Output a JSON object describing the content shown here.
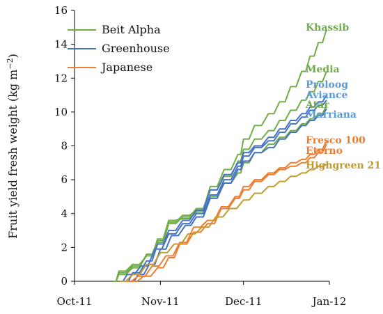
{
  "chart_data": {
    "type": "line",
    "xlabel": "",
    "ylabel": "Fruit yield fresh weight (kg m",
    "ylabel_superscript": "−2",
    "ylabel_suffix": ")",
    "ylim": [
      0,
      16
    ],
    "y_ticks": [
      0,
      2,
      4,
      6,
      8,
      10,
      12,
      14,
      16
    ],
    "xlim": [
      "2011-10-01",
      "2012-01-01"
    ],
    "x_ticks": [
      {
        "date": "2011-10-01",
        "label": "Oct-11"
      },
      {
        "date": "2011-11-01",
        "label": "Nov-11"
      },
      {
        "date": "2011-12-01",
        "label": "Dec-11"
      },
      {
        "date": "2012-01-01",
        "label": "Jan-12"
      }
    ],
    "grid": false,
    "legend_position": "top-left",
    "legend": [
      {
        "name": "Beit Alpha",
        "color": "#70ad47"
      },
      {
        "name": "Greenhouse",
        "color": "#4472c4"
      },
      {
        "name": "Japanese",
        "color": "#ed7d31"
      }
    ],
    "series": [
      {
        "name": "Khassib",
        "group": "Beit Alpha",
        "color": "#70ad47",
        "label_color": "#70ad47",
        "points": [
          [
            "2011-10-15",
            0
          ],
          [
            "2011-10-17",
            0.5
          ],
          [
            "2011-10-22",
            0.9
          ],
          [
            "2011-10-27",
            1.5
          ],
          [
            "2011-10-31",
            2.4
          ],
          [
            "2011-11-04",
            3.5
          ],
          [
            "2011-11-09",
            3.9
          ],
          [
            "2011-11-14",
            4.2
          ],
          [
            "2011-11-19",
            5.6
          ],
          [
            "2011-11-24",
            6.6
          ],
          [
            "2011-11-29",
            7.5
          ],
          [
            "2011-12-01",
            8.4
          ],
          [
            "2011-12-05",
            9.2
          ],
          [
            "2011-12-10",
            9.9
          ],
          [
            "2011-12-14",
            10.6
          ],
          [
            "2011-12-18",
            11.5
          ],
          [
            "2011-12-22",
            12.4
          ],
          [
            "2011-12-25",
            13.3
          ],
          [
            "2011-12-28",
            14.1
          ],
          [
            "2011-12-31",
            14.9
          ]
        ]
      },
      {
        "name": "Media",
        "group": "Beit Alpha",
        "color": "#70ad47",
        "label_color": "#70ad47",
        "points": [
          [
            "2011-10-15",
            0
          ],
          [
            "2011-10-17",
            0.4
          ],
          [
            "2011-10-22",
            0.8
          ],
          [
            "2011-10-27",
            1.6
          ],
          [
            "2011-10-31",
            2.3
          ],
          [
            "2011-11-04",
            3.4
          ],
          [
            "2011-11-09",
            3.8
          ],
          [
            "2011-11-14",
            4.3
          ],
          [
            "2011-11-19",
            5.4
          ],
          [
            "2011-11-24",
            6.2
          ],
          [
            "2011-11-29",
            7.1
          ],
          [
            "2011-12-01",
            7.8
          ],
          [
            "2011-12-05",
            8.4
          ],
          [
            "2011-12-10",
            8.9
          ],
          [
            "2011-12-14",
            9.5
          ],
          [
            "2011-12-18",
            10.1
          ],
          [
            "2011-12-22",
            10.7
          ],
          [
            "2011-12-25",
            11.2
          ],
          [
            "2011-12-28",
            11.8
          ],
          [
            "2011-12-31",
            12.4
          ]
        ]
      },
      {
        "name": "Atar",
        "group": "Beit Alpha",
        "color": "#70ad47",
        "label_color": "#70ad47",
        "points": [
          [
            "2011-10-15",
            0
          ],
          [
            "2011-10-17",
            0.6
          ],
          [
            "2011-10-22",
            1.0
          ],
          [
            "2011-10-27",
            1.5
          ],
          [
            "2011-10-31",
            2.5
          ],
          [
            "2011-11-04",
            3.6
          ],
          [
            "2011-11-09",
            3.7
          ],
          [
            "2011-11-14",
            4.1
          ],
          [
            "2011-11-19",
            5.0
          ],
          [
            "2011-11-24",
            5.8
          ],
          [
            "2011-11-29",
            6.4
          ],
          [
            "2011-12-01",
            7.0
          ],
          [
            "2011-12-05",
            7.6
          ],
          [
            "2011-12-10",
            8.1
          ],
          [
            "2011-12-14",
            8.5
          ],
          [
            "2011-12-18",
            8.9
          ],
          [
            "2011-12-22",
            9.3
          ],
          [
            "2011-12-25",
            9.6
          ],
          [
            "2011-12-28",
            9.9
          ],
          [
            "2011-12-31",
            10.4
          ]
        ]
      },
      {
        "name": "Proloog",
        "group": "Greenhouse",
        "color": "#4472c4",
        "label_color": "#5b9bd5",
        "points": [
          [
            "2011-10-19",
            0
          ],
          [
            "2011-10-22",
            0.5
          ],
          [
            "2011-10-27",
            1.2
          ],
          [
            "2011-10-31",
            2.2
          ],
          [
            "2011-11-04",
            3.0
          ],
          [
            "2011-11-09",
            3.6
          ],
          [
            "2011-11-14",
            4.2
          ],
          [
            "2011-11-19",
            5.4
          ],
          [
            "2011-11-24",
            6.3
          ],
          [
            "2011-11-29",
            7.0
          ],
          [
            "2011-12-01",
            7.6
          ],
          [
            "2011-12-05",
            8.0
          ],
          [
            "2011-12-10",
            8.5
          ],
          [
            "2011-12-14",
            9.0
          ],
          [
            "2011-12-18",
            9.5
          ],
          [
            "2011-12-22",
            9.9
          ],
          [
            "2011-12-25",
            10.3
          ],
          [
            "2011-12-28",
            10.6
          ],
          [
            "2011-12-31",
            11.0
          ]
        ]
      },
      {
        "name": "Aviance",
        "group": "Greenhouse",
        "color": "#4472c4",
        "label_color": "#5b9bd5",
        "points": [
          [
            "2011-10-17",
            0
          ],
          [
            "2011-10-20",
            0.4
          ],
          [
            "2011-10-25",
            0.9
          ],
          [
            "2011-10-30",
            1.9
          ],
          [
            "2011-11-04",
            2.8
          ],
          [
            "2011-11-09",
            3.4
          ],
          [
            "2011-11-14",
            4.0
          ],
          [
            "2011-11-19",
            5.1
          ],
          [
            "2011-11-24",
            6.0
          ],
          [
            "2011-11-29",
            6.8
          ],
          [
            "2011-12-01",
            7.4
          ],
          [
            "2011-12-05",
            7.9
          ],
          [
            "2011-12-10",
            8.3
          ],
          [
            "2011-12-14",
            8.8
          ],
          [
            "2011-12-18",
            9.3
          ],
          [
            "2011-12-22",
            9.7
          ],
          [
            "2011-12-25",
            10.1
          ],
          [
            "2011-12-28",
            10.4
          ],
          [
            "2011-12-31",
            10.7
          ]
        ]
      },
      {
        "name": "Marriana",
        "group": "Greenhouse",
        "color": "#4472c4",
        "label_color": "#5b9bd5",
        "points": [
          [
            "2011-10-21",
            0
          ],
          [
            "2011-10-24",
            0.4
          ],
          [
            "2011-10-28",
            1.0
          ],
          [
            "2011-11-01",
            1.9
          ],
          [
            "2011-11-05",
            2.7
          ],
          [
            "2011-11-10",
            3.3
          ],
          [
            "2011-11-14",
            3.8
          ],
          [
            "2011-11-19",
            4.9
          ],
          [
            "2011-11-24",
            5.8
          ],
          [
            "2011-11-29",
            6.6
          ],
          [
            "2011-12-01",
            7.1
          ],
          [
            "2011-12-05",
            7.6
          ],
          [
            "2011-12-10",
            7.9
          ],
          [
            "2011-12-14",
            8.4
          ],
          [
            "2011-12-18",
            8.8
          ],
          [
            "2011-12-22",
            9.2
          ],
          [
            "2011-12-25",
            9.5
          ],
          [
            "2011-12-28",
            9.8
          ],
          [
            "2011-12-31",
            10.2
          ]
        ]
      },
      {
        "name": "Fresco 100",
        "group": "Japanese",
        "color": "#ed7d31",
        "label_color": "#ed7d31",
        "points": [
          [
            "2011-10-19",
            0
          ],
          [
            "2011-10-24",
            0.3
          ],
          [
            "2011-10-29",
            0.9
          ],
          [
            "2011-11-03",
            1.5
          ],
          [
            "2011-11-08",
            2.3
          ],
          [
            "2011-11-13",
            3.2
          ],
          [
            "2011-11-18",
            3.6
          ],
          [
            "2011-11-23",
            4.4
          ],
          [
            "2011-11-28",
            5.0
          ],
          [
            "2011-12-01",
            5.6
          ],
          [
            "2011-12-05",
            6.0
          ],
          [
            "2011-12-10",
            6.4
          ],
          [
            "2011-12-14",
            6.7
          ],
          [
            "2011-12-18",
            7.0
          ],
          [
            "2011-12-22",
            7.2
          ],
          [
            "2011-12-25",
            7.5
          ],
          [
            "2011-12-28",
            7.8
          ],
          [
            "2011-12-31",
            8.3
          ]
        ]
      },
      {
        "name": "Eterno",
        "group": "Japanese",
        "color": "#ed7d31",
        "label_color": "#ed7d31",
        "points": [
          [
            "2011-10-21",
            0
          ],
          [
            "2011-10-26",
            0.3
          ],
          [
            "2011-10-31",
            0.8
          ],
          [
            "2011-11-04",
            1.4
          ],
          [
            "2011-11-08",
            2.2
          ],
          [
            "2011-11-13",
            2.9
          ],
          [
            "2011-11-18",
            3.4
          ],
          [
            "2011-11-23",
            4.3
          ],
          [
            "2011-11-28",
            4.9
          ],
          [
            "2011-12-01",
            5.4
          ],
          [
            "2011-12-05",
            5.9
          ],
          [
            "2011-12-10",
            6.3
          ],
          [
            "2011-12-14",
            6.6
          ],
          [
            "2011-12-18",
            6.8
          ],
          [
            "2011-12-22",
            7.0
          ],
          [
            "2011-12-25",
            7.3
          ],
          [
            "2011-12-28",
            7.6
          ],
          [
            "2011-12-31",
            8.1
          ]
        ]
      },
      {
        "name": "Highgreen 21",
        "group": "Japanese",
        "color": "#c49a2c",
        "label_color": "#c49a2c",
        "points": [
          [
            "2011-10-17",
            0
          ],
          [
            "2011-10-22",
            0.4
          ],
          [
            "2011-10-27",
            1.0
          ],
          [
            "2011-11-01",
            1.7
          ],
          [
            "2011-11-06",
            2.2
          ],
          [
            "2011-11-11",
            2.8
          ],
          [
            "2011-11-16",
            3.2
          ],
          [
            "2011-11-21",
            3.8
          ],
          [
            "2011-11-26",
            4.3
          ],
          [
            "2011-12-01",
            4.8
          ],
          [
            "2011-12-05",
            5.2
          ],
          [
            "2011-12-10",
            5.6
          ],
          [
            "2011-12-14",
            5.9
          ],
          [
            "2011-12-18",
            6.2
          ],
          [
            "2011-12-22",
            6.4
          ],
          [
            "2011-12-25",
            6.6
          ],
          [
            "2011-12-28",
            6.8
          ],
          [
            "2011-12-31",
            6.9
          ]
        ]
      }
    ]
  }
}
